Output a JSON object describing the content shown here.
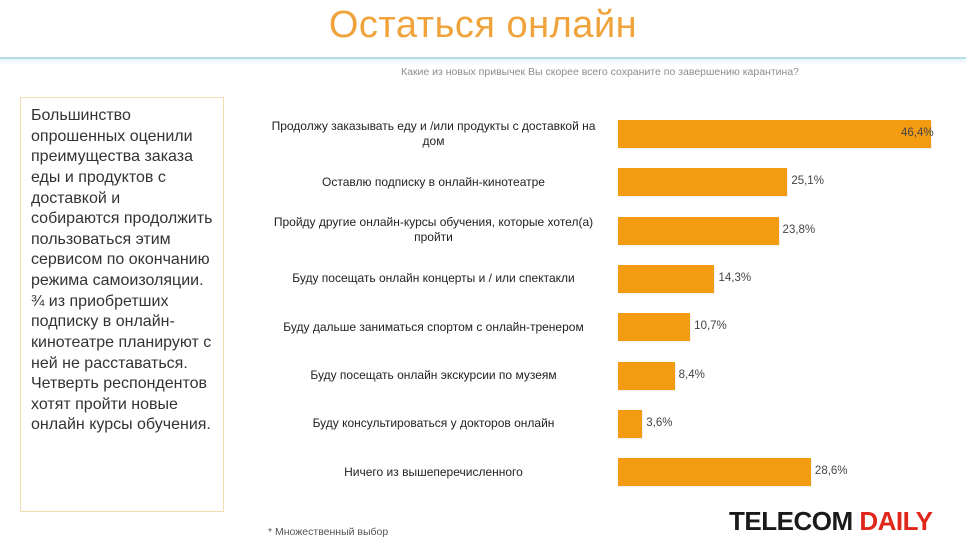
{
  "title": "Остаться онлайн",
  "subtitle": "Какие из новых привычек Вы скорее всего сохраните по завершению карантина?",
  "summary": "Большинство опрошенных оценили преимущества заказа еды и продуктов с доставкой и собираются продолжить пользоваться этим сервисом по окончанию режима самоизоляции. ¾ из приобретших подписку в онлайн-кинотеатре планируют с ней не расставаться. Четверть респондентов хотят пройти новые онлайн курсы обучения.",
  "footnote": "* Множественный выбор",
  "logo": {
    "part1": "TELECOM",
    "part2": "DAILY"
  },
  "colors": {
    "bar": "#f39c12",
    "title": "#f0a33a",
    "logo_accent": "#e1261c"
  },
  "chart_data": {
    "type": "bar",
    "orientation": "horizontal",
    "title": "Остаться онлайн",
    "subtitle": "Какие из новых привычек Вы скорее всего сохраните по завершению карантина?",
    "unit": "%",
    "categories": [
      "Продолжу заказывать еду и /или продукты с доставкой на дом",
      "Оставлю подписку в онлайн-кинотеатре",
      "Пройду другие онлайн-курсы обучения, которые хотел(а) пройти",
      "Буду посещать онлайн концерты и / или спектакли",
      "Буду дальше заниматься спортом с онлайн-тренером",
      "Буду посещать онлайн экскурсии по музеям",
      "Буду консультироваться у докторов онлайн",
      "Ничего из вышеперечисленного"
    ],
    "values": [
      46.4,
      25.1,
      23.8,
      14.3,
      10.7,
      8.4,
      3.6,
      28.6
    ],
    "value_labels": [
      "46,4%",
      "25,1%",
      "23,8%",
      "14,3%",
      "10,7%",
      "8,4%",
      "3,6%",
      "28,6%"
    ],
    "xlim": [
      0,
      46.4
    ],
    "grid": false,
    "legend": "none"
  }
}
